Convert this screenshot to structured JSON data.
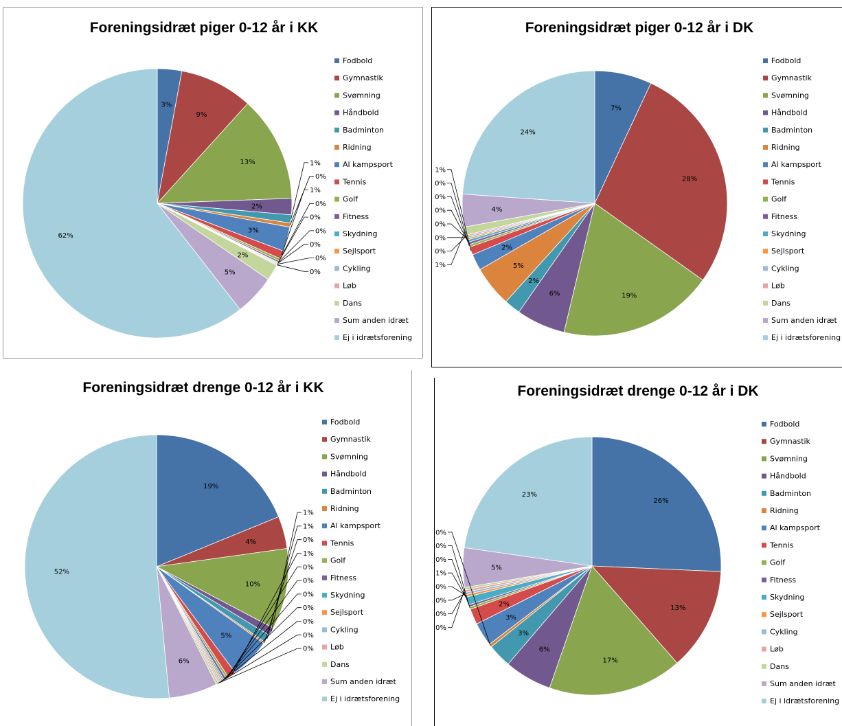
{
  "categories": [
    "Fodbold",
    "Gymnastik",
    "Svømning",
    "Håndbold",
    "Badminton",
    "Ridning",
    "Al kampsport",
    "Tennis",
    "Golf",
    "Fitness",
    "Skydning",
    "Sejlsport",
    "Cykling",
    "Løb",
    "Dans",
    "Sum anden idræt",
    "Ej i idrætsforening"
  ],
  "colors": [
    "#4572a7",
    "#aa4643",
    "#89a54e",
    "#71588f",
    "#4198af",
    "#db843d",
    "#4f81bd",
    "#d34b4b",
    "#93b24e",
    "#7d5d9b",
    "#4bacc6",
    "#f79646",
    "#9bbbd9",
    "#e6a5a5",
    "#c3d69b",
    "#b9a8cc",
    "#a6cfdd"
  ],
  "chart_data": [
    {
      "type": "pie",
      "title": "Foreningsidræt piger 0-12 år i KK",
      "categories": [
        "Fodbold",
        "Gymnastik",
        "Svømning",
        "Håndbold",
        "Badminton",
        "Ridning",
        "Al kampsport",
        "Tennis",
        "Golf",
        "Fitness",
        "Skydning",
        "Sejlsport",
        "Cykling",
        "Løb",
        "Dans",
        "Sum anden idræt",
        "Ej i idrætsforening"
      ],
      "values": [
        3,
        9,
        13,
        2,
        1,
        0.5,
        3,
        1,
        0.3,
        0.2,
        0.1,
        0.1,
        0.1,
        0.1,
        2,
        5,
        62
      ],
      "data_labels": [
        "3%",
        "9%",
        "13%",
        "2%",
        "1%",
        "0%",
        "3%",
        "1%",
        "0%",
        "0%",
        "0%",
        "0%",
        "0%",
        "0%",
        "2%",
        "5%",
        "62%"
      ],
      "legend": "right"
    },
    {
      "type": "pie",
      "title": "Foreningsidræt piger 0-12 år i DK",
      "categories": [
        "Fodbold",
        "Gymnastik",
        "Svømning",
        "Håndbold",
        "Badminton",
        "Ridning",
        "Al kampsport",
        "Tennis",
        "Golf",
        "Fitness",
        "Skydning",
        "Sejlsport",
        "Cykling",
        "Løb",
        "Dans",
        "Sum anden idræt",
        "Ej i idrætsforening"
      ],
      "values": [
        7,
        28,
        19,
        6,
        2,
        5,
        2,
        1,
        0.3,
        0.3,
        0.3,
        0.2,
        0.2,
        0.2,
        1,
        4,
        24
      ],
      "data_labels": [
        "7%",
        "28%",
        "19%",
        "6%",
        "2%",
        "5%",
        "2%",
        "1%",
        "0%",
        "0%",
        "0%",
        "0%",
        "0%",
        "0%",
        "1%",
        "4%",
        "24%"
      ],
      "legend": "right"
    },
    {
      "type": "pie",
      "title": "Foreningsidræt drenge 0-12 år i KK",
      "categories": [
        "Fodbold",
        "Gymnastik",
        "Svømning",
        "Håndbold",
        "Badminton",
        "Ridning",
        "Al kampsport",
        "Tennis",
        "Golf",
        "Fitness",
        "Skydning",
        "Sejlsport",
        "Cykling",
        "Løb",
        "Dans",
        "Sum anden idræt",
        "Ej i idrætsforening"
      ],
      "values": [
        19,
        4,
        10,
        1,
        1,
        0.2,
        5,
        1,
        0.3,
        0.3,
        0.2,
        0.2,
        0.2,
        0.2,
        0.3,
        6,
        52
      ],
      "data_labels": [
        "19%",
        "4%",
        "10%",
        "1%",
        "1%",
        "0%",
        "5%",
        "1%",
        "0%",
        "0%",
        "0%",
        "0%",
        "0%",
        "0%",
        "0%",
        "6%",
        "52%"
      ],
      "legend": "right"
    },
    {
      "type": "pie",
      "title": "Foreningsidræt drenge 0-12 år i DK",
      "categories": [
        "Fodbold",
        "Gymnastik",
        "Svømning",
        "Håndbold",
        "Badminton",
        "Ridning",
        "Al kampsport",
        "Tennis",
        "Golf",
        "Fitness",
        "Skydning",
        "Sejlsport",
        "Cykling",
        "Løb",
        "Dans",
        "Sum anden idræt",
        "Ej i idrætsforening"
      ],
      "values": [
        26,
        13,
        17,
        6,
        3,
        0.4,
        3,
        2,
        0.3,
        0.3,
        1,
        0.3,
        0.3,
        0.3,
        0.3,
        5,
        23
      ],
      "data_labels": [
        "26%",
        "13%",
        "17%",
        "6%",
        "3%",
        "0%",
        "3%",
        "2%",
        "0%",
        "0%",
        "1%",
        "0%",
        "0%",
        "0%",
        "0%",
        "5%",
        "23%"
      ],
      "legend": "right"
    }
  ]
}
